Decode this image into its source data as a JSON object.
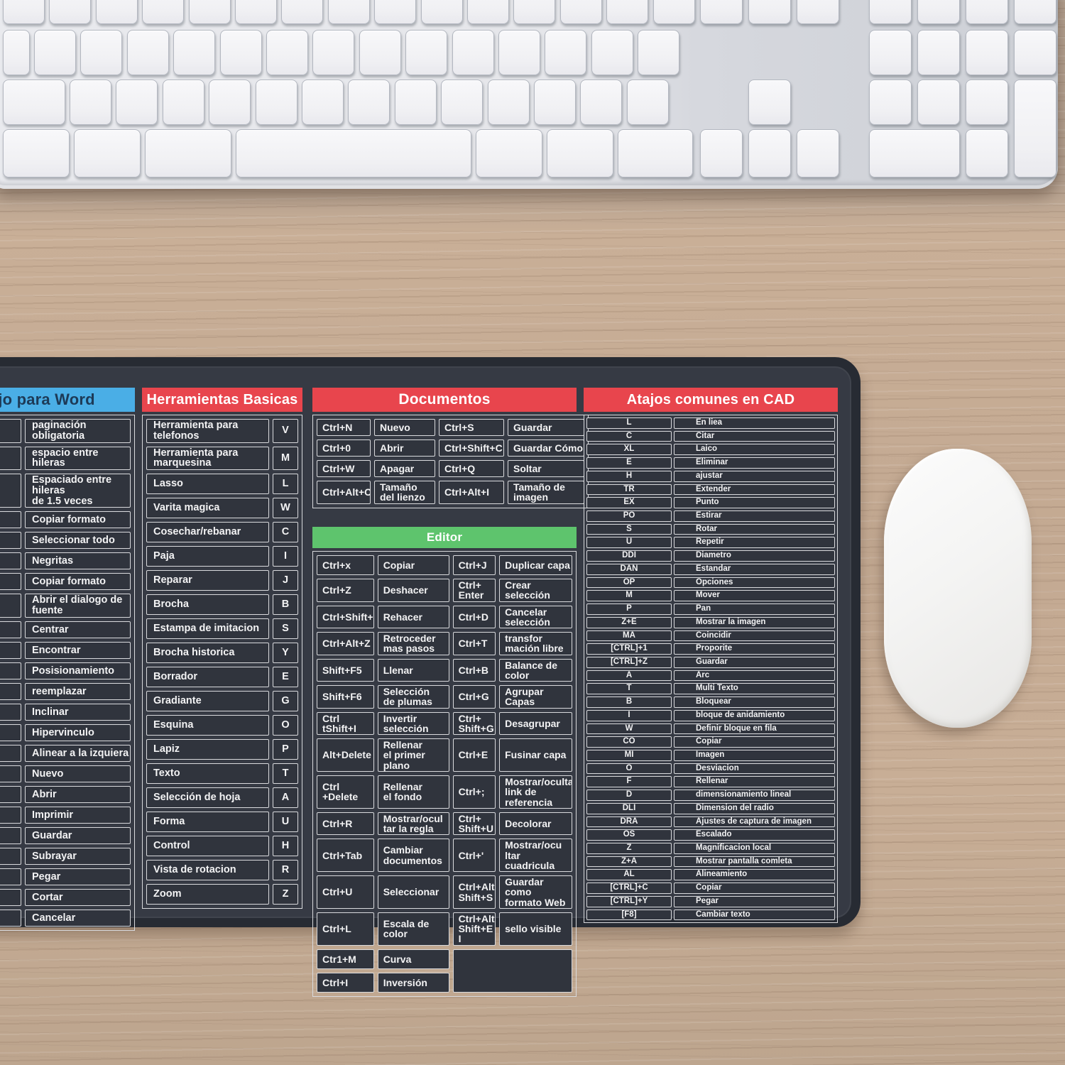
{
  "colors": {
    "red_header": "#e8454d",
    "blue_header": "#4aaee6",
    "green_header": "#5ec46d",
    "pad_surface": "#363a44",
    "pad_edge": "#272b33",
    "cell_border": "#d9dadd",
    "cell_bg": "#30343d",
    "word_header_text": "#1d3a57"
  },
  "word": {
    "header": "e atajo para Word",
    "items": [
      "paginación obligatoria",
      "espacio entre hileras",
      "Espaciado entre hileras\nde 1.5 veces",
      "Copiar formato",
      "Seleccionar todo",
      "Negritas",
      "Copiar formato",
      "Abrir el dialogo de fuente",
      "Centrar",
      "Encontrar",
      "Posisionamiento",
      "reemplazar",
      "Inclinar",
      "Hipervinculo",
      "Alinear a la izquiera",
      "Nuevo",
      "Abrir",
      "Imprimir",
      "Guardar",
      "Subrayar",
      "Pegar",
      "Cortar",
      "Cancelar"
    ]
  },
  "tools": {
    "header": "Herramientas Basicas",
    "items": [
      {
        "label": "Herramienta para telefonos",
        "key": "V"
      },
      {
        "label": "Herramienta para marquesina",
        "key": "M"
      },
      {
        "label": "Lasso",
        "key": "L"
      },
      {
        "label": "Varita magica",
        "key": "W"
      },
      {
        "label": "Cosechar/rebanar",
        "key": "C"
      },
      {
        "label": "Paja",
        "key": "I"
      },
      {
        "label": "Reparar",
        "key": "J"
      },
      {
        "label": "Brocha",
        "key": "B"
      },
      {
        "label": "Estampa de imitacion",
        "key": "S"
      },
      {
        "label": "Brocha historica",
        "key": "Y"
      },
      {
        "label": "Borrador",
        "key": "E"
      },
      {
        "label": "Gradiante",
        "key": "G"
      },
      {
        "label": "Esquina",
        "key": "O"
      },
      {
        "label": "Lapiz",
        "key": "P"
      },
      {
        "label": "Texto",
        "key": "T"
      },
      {
        "label": "Selección de hoja",
        "key": "A"
      },
      {
        "label": "Forma",
        "key": "U"
      },
      {
        "label": "Control",
        "key": "H"
      },
      {
        "label": "Vista de rotacion",
        "key": "R"
      },
      {
        "label": "Zoom",
        "key": "Z"
      }
    ]
  },
  "documents": {
    "header": "Documentos",
    "rows": [
      [
        "Ctrl+N",
        "Nuevo",
        "Ctrl+S",
        "Guardar"
      ],
      [
        "Ctrl+0",
        "Abrir",
        "Ctrl+Shift+C",
        "Guardar Cómo"
      ],
      [
        "Ctrl+W",
        "Apagar",
        "Ctrl+Q",
        "Soltar"
      ],
      [
        "Ctrl+Alt+C",
        "Tamaño\ndel lienzo",
        "Ctrl+Alt+I",
        "Tamaño de imagen"
      ]
    ]
  },
  "editor": {
    "header": "Editor",
    "rows": [
      [
        "Ctrl+x",
        "Copiar",
        "Ctrl+J",
        "Duplicar capa"
      ],
      [
        "Ctrl+Z",
        "Deshacer",
        "Ctrl+\nEnter",
        "Crear selección"
      ],
      [
        "Ctrl+Shift+Z",
        "Rehacer",
        "Ctrl+D",
        "Cancelar\nselección"
      ],
      [
        "Ctrl+Alt+Z",
        "Retroceder\nmas pasos",
        "Ctrl+T",
        "transfor\nmación libre"
      ],
      [
        "Shift+F5",
        "Llenar",
        "Ctrl+B",
        "Balance de color"
      ],
      [
        "Shift+F6",
        "Selección\nde plumas",
        "Ctrl+G",
        "Agrupar Capas"
      ],
      [
        "Ctrl tShift+I",
        "Invertir\nselección",
        "Ctrl+\nShift+G",
        "Desagrupar"
      ],
      [
        "Alt+Delete",
        "Rellenar\nel primer plano",
        "Ctrl+E",
        "Fusinar capa"
      ],
      [
        "Ctrl +Delete",
        "Rellenar\nel fondo",
        "Ctrl+;",
        "Mostrar/ocultar\nlink de referencia"
      ],
      [
        "Ctrl+R",
        "Mostrar/ocul\ntar la regla",
        "Ctrl+\nShift+U",
        "Decolorar"
      ],
      [
        "Ctrl+Tab",
        "Cambiar\ndocumentos",
        "Ctrl+'",
        "Mostrar/ocu\nltar cuadricula"
      ],
      [
        "Ctrl+U",
        "Seleccionar",
        "Ctrl+Alt+\nShift+S",
        "Guardar como\nformato Web"
      ],
      [
        "Ctrl+L",
        "Escala de color",
        "Ctrl+Alt+\nShift+E I",
        "sello visible"
      ],
      [
        "Ctr1+M",
        "Curva",
        "",
        ""
      ],
      [
        "Ctrl+I",
        "Inversión",
        "",
        ""
      ]
    ]
  },
  "cad": {
    "header": "Atajos comunes en CAD",
    "items": [
      {
        "key": "L",
        "label": "En liea"
      },
      {
        "key": "C",
        "label": "Citar"
      },
      {
        "key": "XL",
        "label": "Laico"
      },
      {
        "key": "E",
        "label": "Eliminar"
      },
      {
        "key": "H",
        "label": "ajustar"
      },
      {
        "key": "TR",
        "label": "Extender"
      },
      {
        "key": "EX",
        "label": "Punto"
      },
      {
        "key": "PO",
        "label": "Estirar"
      },
      {
        "key": "S",
        "label": "Rotar"
      },
      {
        "key": "U",
        "label": "Repetir"
      },
      {
        "key": "DDI",
        "label": "Diametro"
      },
      {
        "key": "DAN",
        "label": "Estandar"
      },
      {
        "key": "OP",
        "label": "Opciones"
      },
      {
        "key": "M",
        "label": "Mover"
      },
      {
        "key": "P",
        "label": "Pan"
      },
      {
        "key": "Z+E",
        "label": "Mostrar la imagen"
      },
      {
        "key": "MA",
        "label": "Coincidir"
      },
      {
        "key": "[CTRL]+1",
        "label": "Proporite"
      },
      {
        "key": "[CTRL]+Z",
        "label": "Guardar"
      },
      {
        "key": "A",
        "label": "Arc"
      },
      {
        "key": "T",
        "label": "Multi Texto"
      },
      {
        "key": "B",
        "label": "Bloquear"
      },
      {
        "key": "I",
        "label": "bloque de anidamiento"
      },
      {
        "key": "W",
        "label": "Definir bloque en fila"
      },
      {
        "key": "CO",
        "label": "Copiar"
      },
      {
        "key": "MI",
        "label": "Imagen"
      },
      {
        "key": "O",
        "label": "Desviacion"
      },
      {
        "key": "F",
        "label": "Rellenar"
      },
      {
        "key": "D",
        "label": "dimensionamiento lineal"
      },
      {
        "key": "DLI",
        "label": "Dimension del radio"
      },
      {
        "key": "DRA",
        "label": "Ajustes de captura de imagen"
      },
      {
        "key": "OS",
        "label": "Escalado"
      },
      {
        "key": "Z",
        "label": "Magnificacion local"
      },
      {
        "key": "Z+A",
        "label": "Mostrar pantalla comleta"
      },
      {
        "key": "AL",
        "label": "Alineamiento"
      },
      {
        "key": "[CTRL]+C",
        "label": "Copiar"
      },
      {
        "key": "[CTRL]+Y",
        "label": "Pegar"
      },
      {
        "key": "[F8]",
        "label": "Cambiar texto"
      }
    ]
  }
}
